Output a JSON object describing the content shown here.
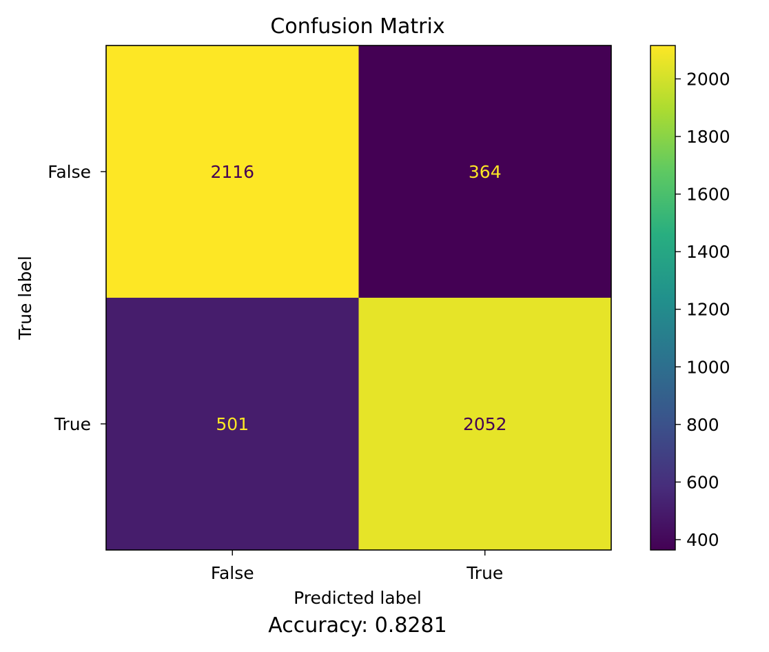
{
  "chart_data": {
    "type": "heatmap",
    "title": "Confusion Matrix",
    "xlabel": "Predicted label",
    "ylabel": "True label",
    "x_categories": [
      "False",
      "True"
    ],
    "y_categories": [
      "False",
      "True"
    ],
    "values": [
      [
        2116,
        364
      ],
      [
        501,
        2052
      ]
    ],
    "colormap": "viridis",
    "colorbar": {
      "ticks": [
        400,
        600,
        800,
        1000,
        1200,
        1400,
        1600,
        1800,
        2000
      ],
      "range": [
        364,
        2116
      ]
    },
    "annotation": "Accuracy: 0.8281"
  }
}
